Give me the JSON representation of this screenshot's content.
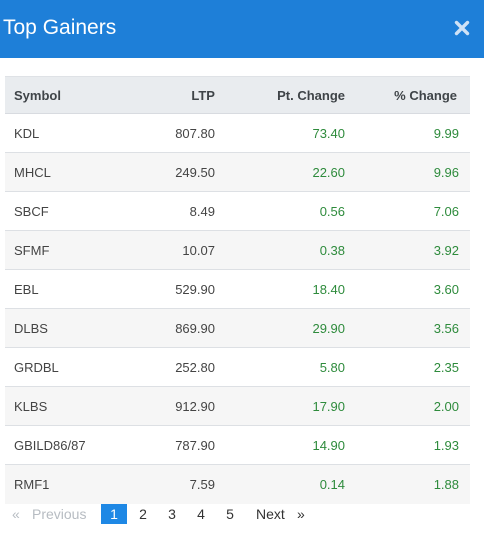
{
  "modal": {
    "title": "Top Gainers",
    "close_icon": "close-icon"
  },
  "table": {
    "columns": [
      "Symbol",
      "LTP",
      "Pt. Change",
      "% Change"
    ],
    "rows": [
      {
        "symbol": "KDL",
        "ltp": "807.80",
        "pt_change": "73.40",
        "pct_change": "9.99"
      },
      {
        "symbol": "MHCL",
        "ltp": "249.50",
        "pt_change": "22.60",
        "pct_change": "9.96"
      },
      {
        "symbol": "SBCF",
        "ltp": "8.49",
        "pt_change": "0.56",
        "pct_change": "7.06"
      },
      {
        "symbol": "SFMF",
        "ltp": "10.07",
        "pt_change": "0.38",
        "pct_change": "3.92"
      },
      {
        "symbol": "EBL",
        "ltp": "529.90",
        "pt_change": "18.40",
        "pct_change": "3.60"
      },
      {
        "symbol": "DLBS",
        "ltp": "869.90",
        "pt_change": "29.90",
        "pct_change": "3.56"
      },
      {
        "symbol": "GRDBL",
        "ltp": "252.80",
        "pt_change": "5.80",
        "pct_change": "2.35"
      },
      {
        "symbol": "KLBS",
        "ltp": "912.90",
        "pt_change": "17.90",
        "pct_change": "2.00"
      },
      {
        "symbol": "GBILD86/87",
        "ltp": "787.90",
        "pt_change": "14.90",
        "pct_change": "1.93"
      },
      {
        "symbol": "RMF1",
        "ltp": "7.59",
        "pt_change": "0.14",
        "pct_change": "1.88"
      }
    ]
  },
  "pagination": {
    "prev_arrow": "«",
    "prev_label": "Previous",
    "pages": [
      "1",
      "2",
      "3",
      "4",
      "5"
    ],
    "active_page": "1",
    "next_label": "Next",
    "next_arrow": "»"
  },
  "colors": {
    "header_bg": "#1e7fd8",
    "positive": "#2e8b3c",
    "active_page_bg": "#1e88e5"
  }
}
